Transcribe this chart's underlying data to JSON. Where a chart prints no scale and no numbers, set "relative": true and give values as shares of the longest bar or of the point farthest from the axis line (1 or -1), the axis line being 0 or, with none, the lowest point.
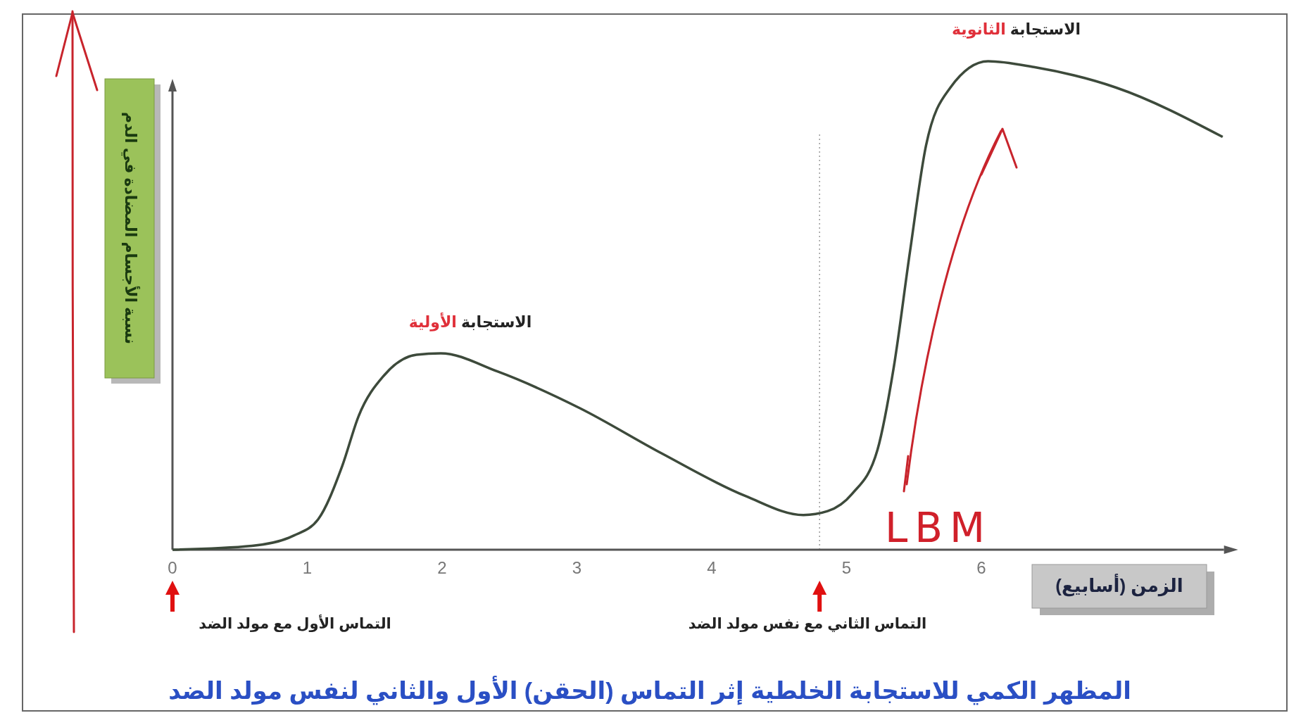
{
  "chart_data": {
    "type": "line",
    "relative": true,
    "title": "المظهر الكمي للاستجابة الخلطية إثر التماس (الحقن) الأول والثاني لنفس مولد الضد",
    "xlabel": "الزمن (أسابيع)",
    "ylabel": "نسبة الأجسام المضادة في الدم",
    "xlim": [
      0,
      7.8
    ],
    "xticks": [
      0,
      1,
      2,
      3,
      4,
      5,
      6
    ],
    "series": [
      {
        "color": "#3d4a3b",
        "x": [
          0,
          0.59,
          0.9,
          1.08,
          1.26,
          1.38,
          1.57,
          1.81,
          1.99,
          2.41,
          3.02,
          3.63,
          4.25,
          4.68,
          4.86,
          5.04,
          5.23,
          5.35,
          5.47,
          5.59,
          5.77,
          6.05,
          6.39,
          7.0,
          7.79
        ],
        "values": [
          0,
          0.008,
          0.029,
          0.062,
          0.172,
          0.273,
          0.357,
          0.399,
          0.402,
          0.365,
          0.29,
          0.197,
          0.11,
          0.071,
          0.079,
          0.114,
          0.205,
          0.373,
          0.609,
          0.828,
          0.946,
          1,
          0.988,
          0.946,
          0.845
        ]
      }
    ],
    "ref_lines": [
      {
        "axis": "x",
        "value": 4.8,
        "color": "#9a9a9a",
        "line_style": "dotted"
      }
    ],
    "annotations": [
      {
        "text": "الاستجابة الأولية",
        "x": 2,
        "y": 0.4
      },
      {
        "text": "الاستجابة الثانوية",
        "x": 6.05,
        "y": 1
      },
      "التماس الأول مع مولد الضد",
      "التماس الثاني مع نفس مولد الضد",
      "LBM"
    ],
    "grid": false,
    "marker": "none",
    "line_style": "solid"
  }
}
